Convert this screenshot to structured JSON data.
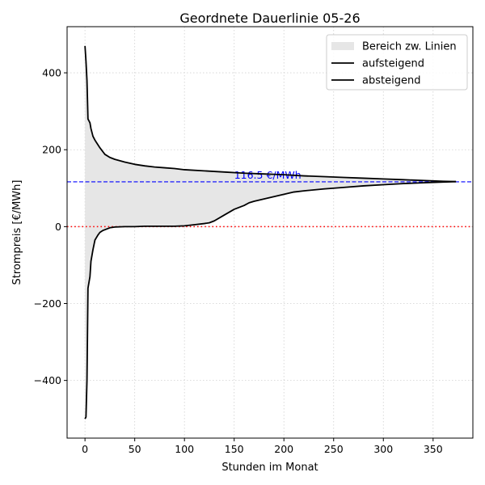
{
  "chart_data": {
    "type": "line",
    "title": "Geordnete Dauerlinie 05-26",
    "xlabel": "Stunden im Monat",
    "ylabel": "Strompreis [€/MWh]",
    "xlim": [
      -18,
      390
    ],
    "ylim": [
      -550,
      520
    ],
    "xticks": [
      0,
      50,
      100,
      150,
      200,
      250,
      300,
      350
    ],
    "yticks": [
      -400,
      -200,
      0,
      200,
      400
    ],
    "grid": true,
    "legend_position": "top-right",
    "fill_label": "Bereich zw. Linien",
    "reference_lines": [
      {
        "axis": "y",
        "value": 116.5,
        "style": "dashed",
        "color": "#0000ff",
        "label": "116.5 €/MWh"
      },
      {
        "axis": "y",
        "value": 0,
        "style": "dotted",
        "color": "#ff0000"
      }
    ],
    "series": [
      {
        "name": "aufsteigend",
        "color": "#000000",
        "x": [
          0,
          1,
          2,
          3,
          5,
          6,
          8,
          10,
          13,
          15,
          18,
          20,
          25,
          30,
          40,
          50,
          60,
          70,
          80,
          90,
          100,
          110,
          120,
          125,
          130,
          140,
          150,
          160,
          165,
          170,
          180,
          190,
          200,
          210,
          220,
          240,
          260,
          280,
          300,
          320,
          340,
          360,
          373
        ],
        "y": [
          -500,
          -495,
          -400,
          -160,
          -130,
          -90,
          -60,
          -35,
          -22,
          -15,
          -10,
          -8,
          -3,
          -1,
          0,
          0,
          1,
          1,
          1,
          1,
          2,
          5,
          8,
          10,
          15,
          30,
          45,
          55,
          62,
          66,
          72,
          78,
          84,
          90,
          93,
          98,
          102,
          106,
          109,
          112,
          114,
          116,
          117
        ]
      },
      {
        "name": "absteigend",
        "color": "#000000",
        "x": [
          0,
          1,
          2,
          3,
          5,
          6,
          8,
          10,
          15,
          20,
          25,
          30,
          40,
          50,
          60,
          70,
          80,
          90,
          100,
          120,
          140,
          160,
          180,
          200,
          220,
          240,
          260,
          280,
          300,
          320,
          340,
          360,
          373
        ],
        "y": [
          470,
          430,
          380,
          280,
          270,
          255,
          235,
          225,
          205,
          188,
          180,
          175,
          168,
          162,
          158,
          155,
          153,
          151,
          148,
          145,
          142,
          139,
          137,
          135,
          132,
          130,
          128,
          126,
          124,
          122,
          120,
          118,
          117
        ]
      }
    ]
  }
}
